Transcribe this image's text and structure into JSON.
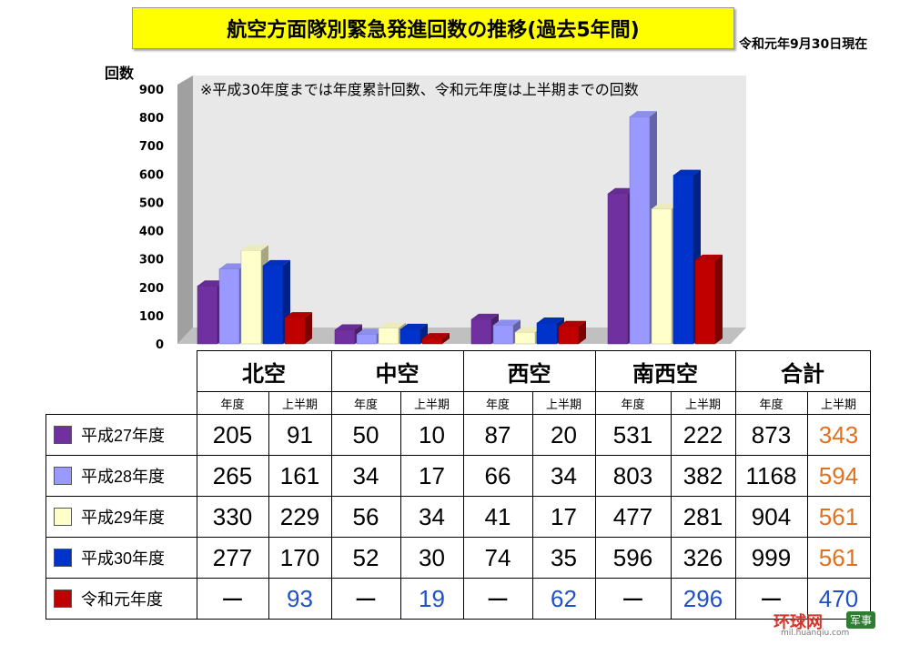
{
  "title": "航空方面隊別緊急発進回数の推移(過去5年間)",
  "date_note": "令和元年9月30日現在",
  "chart_data": {
    "type": "bar",
    "ylabel": "回数",
    "ylim": [
      0,
      900
    ],
    "yticks": [
      "0",
      "100",
      "200",
      "300",
      "400",
      "500",
      "600",
      "700",
      "800",
      "900"
    ],
    "note": "※平成30年度までは年度累計回数、令和元年度は上半期までの回数",
    "categories": [
      "北空",
      "中空",
      "西空",
      "南西空"
    ],
    "series": [
      {
        "name": "平成27年度",
        "color": "#7030a0",
        "values": [
          205,
          50,
          87,
          531
        ]
      },
      {
        "name": "平成28年度",
        "color": "#9999ff",
        "values": [
          265,
          34,
          66,
          803
        ]
      },
      {
        "name": "平成29年度",
        "color": "#ffffcc",
        "values": [
          330,
          56,
          41,
          477
        ]
      },
      {
        "name": "平成30年度",
        "color": "#0033cc",
        "values": [
          277,
          52,
          74,
          596
        ]
      },
      {
        "name": "令和元年度",
        "color": "#c00000",
        "values": [
          93,
          19,
          62,
          296
        ]
      }
    ],
    "grid": false
  },
  "table": {
    "regions": [
      "北空",
      "中空",
      "西空",
      "南西空",
      "合計"
    ],
    "sub_labels": [
      "年度",
      "上半期"
    ],
    "rows": [
      {
        "label": "平成27年度",
        "color": "#7030a0",
        "cells": [
          "205",
          "91",
          "50",
          "10",
          "87",
          "20",
          "531",
          "222",
          "873",
          "343"
        ]
      },
      {
        "label": "平成28年度",
        "color": "#9999ff",
        "cells": [
          "265",
          "161",
          "34",
          "17",
          "66",
          "34",
          "803",
          "382",
          "1168",
          "594"
        ]
      },
      {
        "label": "平成29年度",
        "color": "#ffffcc",
        "cells": [
          "330",
          "229",
          "56",
          "34",
          "41",
          "17",
          "477",
          "281",
          "904",
          "561"
        ]
      },
      {
        "label": "平成30年度",
        "color": "#0033cc",
        "cells": [
          "277",
          "170",
          "52",
          "30",
          "74",
          "35",
          "596",
          "326",
          "999",
          "561"
        ]
      },
      {
        "label": "令和元年度",
        "color": "#c00000",
        "cells": [
          "ー",
          "93",
          "ー",
          "19",
          "ー",
          "62",
          "ー",
          "296",
          "ー",
          "470"
        ]
      }
    ]
  },
  "watermark": {
    "main": "环球网",
    "badge": "军事",
    "sub": "mil.huanqiu.com"
  }
}
